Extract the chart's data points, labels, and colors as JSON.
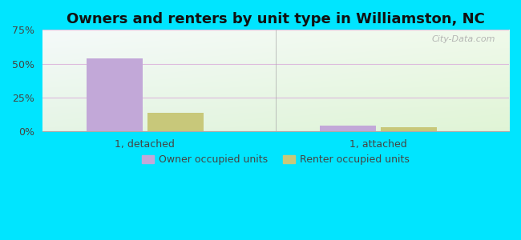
{
  "title": "Owners and renters by unit type in Williamston, NC",
  "categories": [
    "1, detached",
    "1, attached"
  ],
  "owner_values": [
    54.0,
    4.0
  ],
  "renter_values": [
    14.0,
    3.0
  ],
  "owner_color": "#c2a8d8",
  "renter_color": "#c8c87a",
  "ylim": [
    0,
    75
  ],
  "yticks": [
    0,
    25,
    50,
    75
  ],
  "ytick_labels": [
    "0%",
    "25%",
    "50%",
    "75%"
  ],
  "background_outer": "#00e5ff",
  "legend_owner": "Owner occupied units",
  "legend_renter": "Renter occupied units",
  "watermark": "City-Data.com",
  "title_fontsize": 13,
  "bar_width": 0.12,
  "group_centers": [
    0.22,
    0.72
  ],
  "xlim": [
    0.0,
    1.0
  ]
}
